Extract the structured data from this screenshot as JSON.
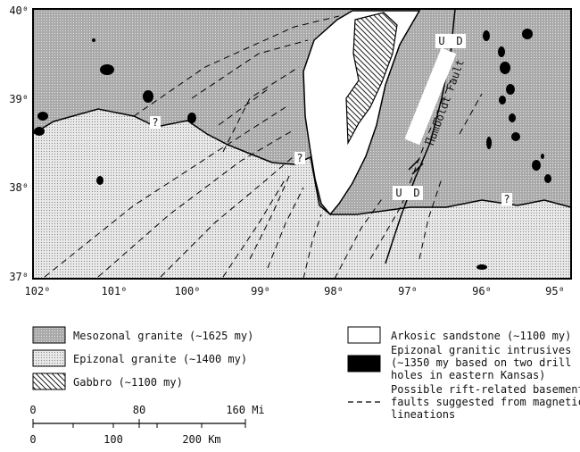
{
  "map": {
    "lat_labels": [
      "40⁰",
      "39⁰",
      "38⁰",
      "37⁰"
    ],
    "lon_labels": [
      "102⁰",
      "101⁰",
      "100⁰",
      "99⁰",
      "98⁰",
      "97⁰",
      "96⁰",
      "95⁰"
    ],
    "question_marks": [
      "?",
      "?",
      "?"
    ],
    "fault_marks": [
      "U",
      "D",
      "U",
      "D"
    ],
    "fault_name": "Humboldt Fault"
  },
  "legend": {
    "left": [
      "Mesozonal granite (∼1625 my)",
      "Epizonal granite (∼1400 my)",
      "Gabbro (∼1100 my)"
    ],
    "right": [
      [
        "Arkosic sandstone (∼1100 my)"
      ],
      [
        "Epizonal granitic intrusives",
        "(∼1350 my based on two drill",
        "holes in eastern Kansas)"
      ],
      [
        "Possible rift-related basement",
        "faults suggested from magnetic",
        "lineations"
      ]
    ]
  },
  "scale": {
    "miles": [
      "0",
      "80",
      "160 Mi"
    ],
    "km": [
      "0",
      "100",
      "200 Km"
    ]
  }
}
